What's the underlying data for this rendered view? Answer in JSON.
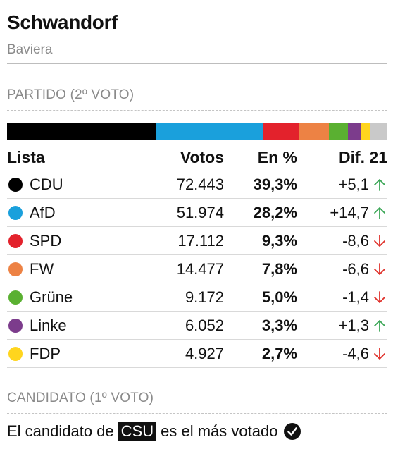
{
  "header": {
    "title": "Schwandorf",
    "subtitle": "Baviera"
  },
  "party_section": {
    "label": "PARTIDO (2º VOTO)"
  },
  "bar": [
    {
      "color": "#000000",
      "share": 39.3
    },
    {
      "color": "#1aa0dc",
      "share": 28.2
    },
    {
      "color": "#e3222c",
      "share": 9.3
    },
    {
      "color": "#ed8244",
      "share": 7.8
    },
    {
      "color": "#5ab031",
      "share": 5.0
    },
    {
      "color": "#7c3c8c",
      "share": 3.3
    },
    {
      "color": "#ffd51e",
      "share": 2.7
    },
    {
      "color": "#c9c9c9",
      "share": 4.4
    }
  ],
  "table": {
    "headers": {
      "list": "Lista",
      "votes": "Votos",
      "pct": "En %",
      "diff": "Dif. 21"
    },
    "rows": [
      {
        "party": "CDU",
        "color": "#000000",
        "votes": "72.443",
        "pct": "39,3%",
        "diff": "+5,1",
        "trend": "up"
      },
      {
        "party": "AfD",
        "color": "#1aa0dc",
        "votes": "51.974",
        "pct": "28,2%",
        "diff": "+14,7",
        "trend": "up"
      },
      {
        "party": "SPD",
        "color": "#e3222c",
        "votes": "17.112",
        "pct": "9,3%",
        "diff": "-8,6",
        "trend": "down"
      },
      {
        "party": "FW",
        "color": "#ed8244",
        "votes": "14.477",
        "pct": "7,8%",
        "diff": "-6,6",
        "trend": "down"
      },
      {
        "party": "Grüne",
        "color": "#5ab031",
        "votes": "9.172",
        "pct": "5,0%",
        "diff": "-1,4",
        "trend": "down"
      },
      {
        "party": "Linke",
        "color": "#7c3c8c",
        "votes": "6.052",
        "pct": "3,3%",
        "diff": "+1,3",
        "trend": "up"
      },
      {
        "party": "FDP",
        "color": "#ffd51e",
        "votes": "4.927",
        "pct": "2,7%",
        "diff": "-4,6",
        "trend": "down"
      }
    ]
  },
  "candidate_section": {
    "label": "CANDIDATO (1º VOTO)",
    "text_before": "El candidato de",
    "party_tag": "CSU",
    "text_after": "es el más votado",
    "icon": "check-circle-icon"
  },
  "colors": {
    "up": "#3aa655",
    "down": "#e0312b"
  }
}
